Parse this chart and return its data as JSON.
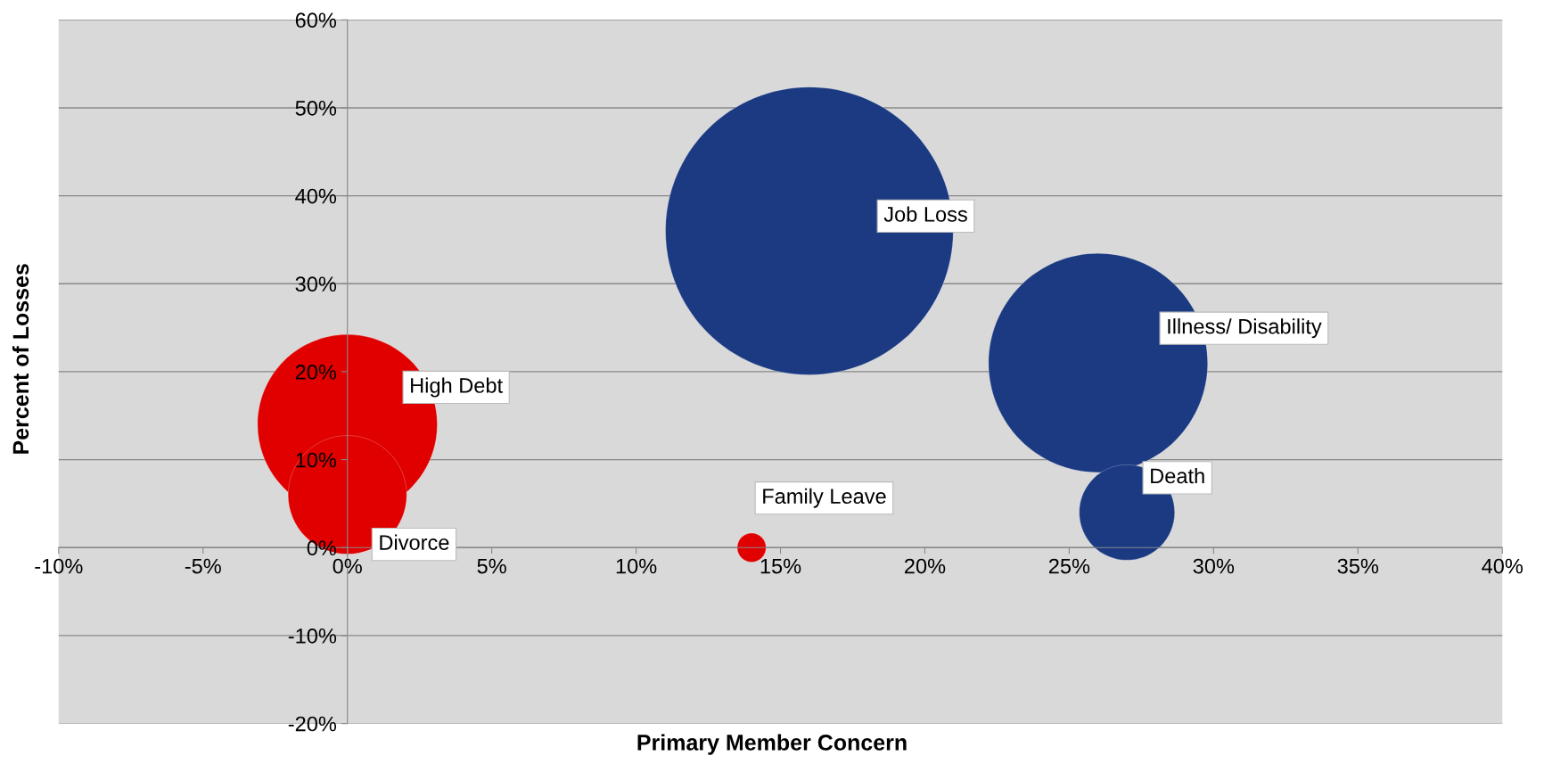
{
  "chart_data": {
    "type": "bubble",
    "xlabel": "Primary Member Concern",
    "ylabel": "Percent of Losses",
    "series": [
      {
        "name": "Job Loss",
        "color": "#1b3a82",
        "x": [
          16
        ],
        "values": [
          36
        ],
        "sizes": [
          1
        ]
      },
      {
        "name": "Illness/ Disability",
        "color": "#1b3a82",
        "x": [
          26
        ],
        "values": [
          21
        ],
        "sizes": [
          0.58
        ]
      },
      {
        "name": "High Debt",
        "color": "#e00000",
        "x": [
          0
        ],
        "values": [
          14
        ],
        "sizes": [
          0.39
        ]
      },
      {
        "name": "Divorce",
        "color": "#e00000",
        "x": [
          0
        ],
        "values": [
          6
        ],
        "sizes": [
          0.17
        ]
      },
      {
        "name": "Death",
        "color": "#1b3a82",
        "x": [
          27
        ],
        "values": [
          4
        ],
        "sizes": [
          0.11
        ]
      },
      {
        "name": "Family Leave",
        "color": "#e00000",
        "x": [
          14
        ],
        "values": [
          0
        ],
        "sizes": [
          0.01
        ]
      }
    ],
    "xlim": [
      -10,
      40
    ],
    "ylim": [
      -20,
      60
    ],
    "xticks": [
      {
        "value": -10,
        "label": "-10%"
      },
      {
        "value": -5,
        "label": "-5%"
      },
      {
        "value": 0,
        "label": "0%"
      },
      {
        "value": 5,
        "label": "5%"
      },
      {
        "value": 10,
        "label": "10%"
      },
      {
        "value": 15,
        "label": "15%"
      },
      {
        "value": 20,
        "label": "20%"
      },
      {
        "value": 25,
        "label": "25%"
      },
      {
        "value": 30,
        "label": "30%"
      },
      {
        "value": 35,
        "label": "35%"
      },
      {
        "value": 40,
        "label": "40%"
      }
    ],
    "yticks": [
      {
        "value": -20,
        "label": "-20%"
      },
      {
        "value": -10,
        "label": "-10%"
      },
      {
        "value": 0,
        "label": "0%"
      },
      {
        "value": 10,
        "label": "10%"
      },
      {
        "value": 20,
        "label": "20%"
      },
      {
        "value": 30,
        "label": "30%"
      },
      {
        "value": 40,
        "label": "40%"
      },
      {
        "value": 50,
        "label": "50%"
      },
      {
        "value": 60,
        "label": "60%"
      }
    ],
    "grid": "y",
    "legend": false
  }
}
